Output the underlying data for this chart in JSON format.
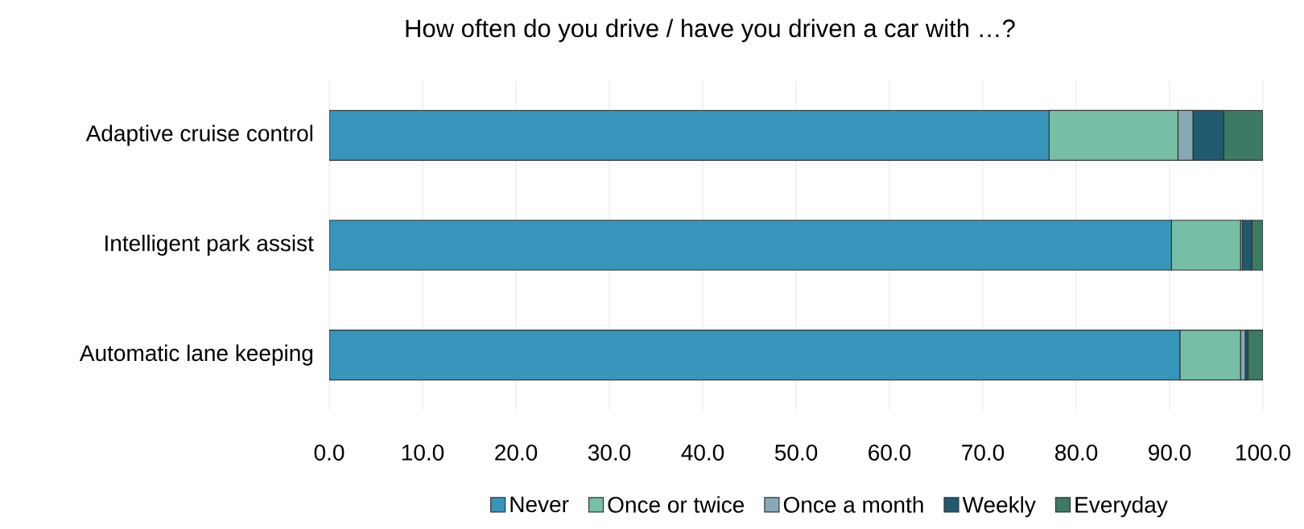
{
  "chart_data": {
    "type": "bar",
    "title": "How often do you drive / have you driven a car with …?",
    "orientation": "horizontal",
    "stacked": true,
    "categories": [
      "Adaptive cruise control",
      "Intelligent park assist",
      "Automatic lane keeping"
    ],
    "series": [
      {
        "name": "Never",
        "color": "#3795bc",
        "values": [
          77.1,
          90.2,
          91.1
        ]
      },
      {
        "name": "Once or twice",
        "color": "#76bfa6",
        "values": [
          13.8,
          7.4,
          6.5
        ]
      },
      {
        "name": "Once a month",
        "color": "#85aab5",
        "values": [
          1.6,
          0.2,
          0.5
        ]
      },
      {
        "name": "Weekly",
        "color": "#1f5a6e",
        "values": [
          3.3,
          1.0,
          0.3
        ]
      },
      {
        "name": "Everyday",
        "color": "#3c7a64",
        "values": [
          4.2,
          1.2,
          1.6
        ]
      }
    ],
    "xlim": [
      0,
      100
    ],
    "xticks": [
      {
        "value": 0,
        "label": "0.0"
      },
      {
        "value": 10,
        "label": "10.0"
      },
      {
        "value": 20,
        "label": "20.0"
      },
      {
        "value": 30,
        "label": "30.0"
      },
      {
        "value": 40,
        "label": "40.0"
      },
      {
        "value": 50,
        "label": "50.0"
      },
      {
        "value": 60,
        "label": "60.0"
      },
      {
        "value": 70,
        "label": "70.0"
      },
      {
        "value": 80,
        "label": "80.0"
      },
      {
        "value": 90,
        "label": "90.0"
      },
      {
        "value": 100,
        "label": "100.0"
      }
    ],
    "grid": "x",
    "legend": "bottom"
  }
}
